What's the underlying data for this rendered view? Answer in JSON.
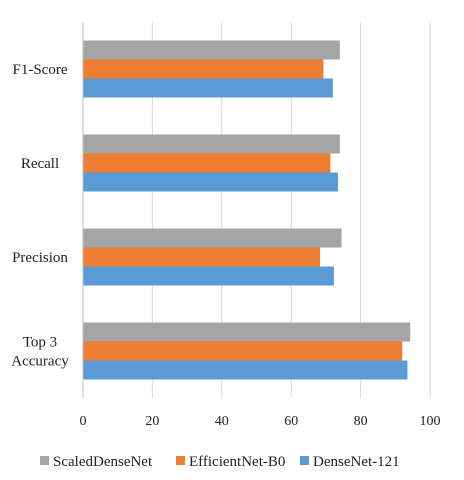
{
  "chart_data": {
    "type": "bar",
    "orientation": "horizontal",
    "categories": [
      "Top 3 Accuracy",
      "Precision",
      "Recall",
      "F1-Score"
    ],
    "category_lines": [
      [
        "Top 3",
        "Accuracy"
      ],
      [
        "Precision"
      ],
      [
        "Recall"
      ],
      [
        "F1-Score"
      ]
    ],
    "series": [
      {
        "name": "DenseNet-121",
        "color": "#5b9bd5",
        "values": [
          93.5,
          72.3,
          73.5,
          72.0
        ]
      },
      {
        "name": "EfficientNet-B0",
        "color": "#ed7d31",
        "values": [
          92.0,
          68.3,
          71.3,
          69.3
        ]
      },
      {
        "name": "ScaledDenseNet",
        "color": "#a5a5a5",
        "values": [
          94.3,
          74.5,
          74.0,
          74.0
        ]
      }
    ],
    "legend_order": [
      "ScaledDenseNet",
      "EfficientNet-B0",
      "DenseNet-121"
    ],
    "xlim": [
      0,
      100
    ],
    "xticks": [
      "0",
      "20",
      "40",
      "60",
      "80",
      "100"
    ],
    "grid": true,
    "legend_position": "bottom",
    "title": "",
    "xlabel": "",
    "ylabel": ""
  }
}
